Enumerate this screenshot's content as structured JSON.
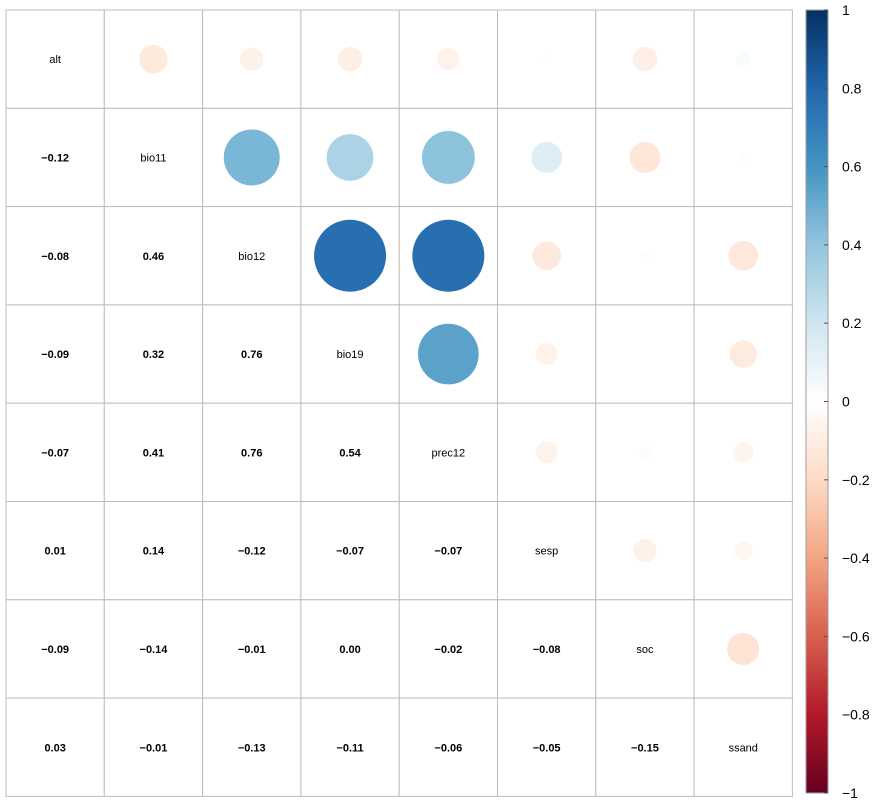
{
  "chart_data": {
    "type": "heatmap",
    "variables": [
      "alt",
      "bio11",
      "bio12",
      "bio19",
      "prec12",
      "sesp",
      "soc",
      "ssand"
    ],
    "lower_labels": [
      [],
      [
        "−0.12"
      ],
      [
        "−0.08",
        "0.46"
      ],
      [
        "−0.09",
        "0.32",
        "0.76"
      ],
      [
        "−0.07",
        "0.41",
        "0.76",
        "0.54"
      ],
      [
        "0.01",
        "0.14",
        "−0.12",
        "−0.07",
        "−0.07"
      ],
      [
        "−0.09",
        "−0.14",
        "−0.01",
        "0.00",
        "−0.02",
        "−0.08"
      ],
      [
        "0.03",
        "−0.01",
        "−0.13",
        "−0.11",
        "−0.06",
        "−0.05",
        "−0.15"
      ]
    ],
    "matrix": [
      [
        1,
        -0.12,
        -0.08,
        -0.09,
        -0.07,
        0.01,
        -0.09,
        0.03
      ],
      [
        -0.12,
        1,
        0.46,
        0.32,
        0.41,
        0.14,
        -0.14,
        -0.01
      ],
      [
        -0.08,
        0.46,
        1,
        0.76,
        0.76,
        -0.12,
        -0.01,
        -0.13
      ],
      [
        -0.09,
        0.32,
        0.76,
        1,
        0.54,
        -0.07,
        0.0,
        -0.11
      ],
      [
        -0.07,
        0.41,
        0.76,
        0.54,
        1,
        -0.07,
        -0.02,
        -0.06
      ],
      [
        0.01,
        0.14,
        -0.12,
        -0.07,
        -0.07,
        1,
        -0.08,
        -0.05
      ],
      [
        -0.09,
        -0.14,
        -0.01,
        0.0,
        -0.02,
        -0.08,
        1,
        -0.15
      ],
      [
        0.03,
        -0.01,
        -0.13,
        -0.11,
        -0.06,
        -0.05,
        -0.15,
        1
      ]
    ],
    "upper": "circle",
    "lower": "number",
    "colorbar": {
      "range": [
        -1,
        1
      ],
      "ticks": [
        "1",
        "0.8",
        "0.6",
        "0.4",
        "0.2",
        "0",
        "−0.2",
        "−0.4",
        "−0.6",
        "−0.8",
        "−1"
      ],
      "colors": [
        "#67001F",
        "#B2182B",
        "#D6604D",
        "#F4A582",
        "#FDDBC7",
        "#FFFFFF",
        "#D1E5F0",
        "#92C5DE",
        "#4393C3",
        "#2166AC",
        "#053061"
      ]
    },
    "grid": true,
    "legend_position": "right"
  }
}
